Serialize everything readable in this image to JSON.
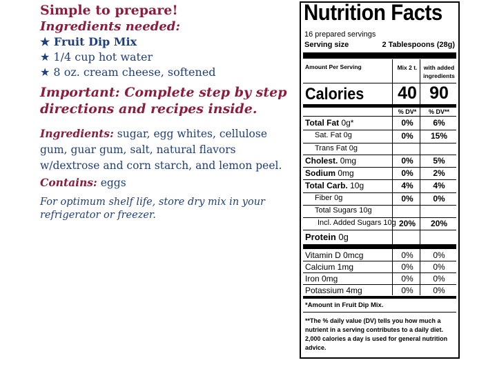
{
  "left": {
    "simple_to_prepare": "Simple to prepare!",
    "ingredients_needed": "Ingredients needed:",
    "needed_items": [
      "★ Fruit Dip Mix",
      "★ 1/4 cup hot water",
      "★ 8 oz. cream cheese, softened"
    ],
    "important": "Important: Complete step by step directions and recipes inside.",
    "ingredients_label": "Ingredients:",
    "ingredients_text": "sugar, egg whites, cellulose gum, guar gum, salt, natural flavors w/dextrose and corn starch, and lemon peel.",
    "contains_label": "Contains:",
    "contains_text": "eggs",
    "storage_note": "For optimum shelf life, store dry mix in your refrigerator or freezer."
  },
  "nutrition": {
    "title": "Nutrition Facts",
    "servings": "16 prepared servings",
    "serving_size_label": "Serving size",
    "serving_size_value": "2 Tablespoons (28g)",
    "amount_per_serving": "Amount Per Serving",
    "col1_header": "Mix 2 t.",
    "col2_header": "with added ingredients",
    "calories_label": "Calories",
    "calories_mix": "40",
    "calories_added": "90",
    "dv_header_1": "% DV*",
    "dv_header_2": "% DV**",
    "rows": [
      {
        "label": "Total Fat",
        "amount": "0g*",
        "mix": "0%",
        "added": "6%"
      },
      {
        "label": "Sat. Fat",
        "amount": "0g",
        "mix": "0%",
        "added": "15%"
      },
      {
        "label": "Trans Fat",
        "amount": "0g",
        "mix": "",
        "added": ""
      },
      {
        "label": "Cholest.",
        "amount": "0mg",
        "mix": "0%",
        "added": "5%"
      },
      {
        "label": "Sodium",
        "amount": "0mg",
        "mix": "0%",
        "added": "2%"
      },
      {
        "label": "Total Carb.",
        "amount": "10g",
        "mix": "4%",
        "added": "4%"
      },
      {
        "label": "Fiber",
        "amount": "0g",
        "mix": "0%",
        "added": "0%"
      },
      {
        "label": "Total Sugars",
        "amount": "10g",
        "mix": "",
        "added": ""
      },
      {
        "label": "Incl. Added Sugars",
        "amount": "10g",
        "mix": "20%",
        "added": "20%"
      },
      {
        "label": "Protein",
        "amount": "0g",
        "mix": "",
        "added": ""
      }
    ],
    "vitamins": [
      {
        "label": "Vitamin D 0mcg",
        "mix": "0%",
        "added": "0%"
      },
      {
        "label": "Calcium 1mg",
        "mix": "0%",
        "added": "0%"
      },
      {
        "label": "Iron 0mg",
        "mix": "0%",
        "added": "0%"
      },
      {
        "label": "Potassium 4mg",
        "mix": "0%",
        "added": "0%"
      }
    ],
    "footnote_1_prefix": "*Amount in ",
    "footnote_1_bold": "Fruit Dip Mix.",
    "footnote_2": "**The % daily value (DV) tells you how much a nutrient in a serving contributes to a daily diet. 2,000 calories a day is used for general nutrition advice."
  }
}
